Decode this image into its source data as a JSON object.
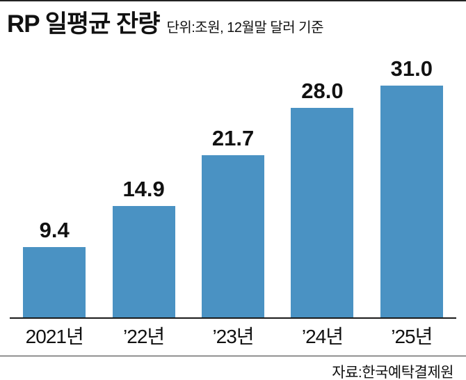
{
  "header": {
    "title": "RP 일평균 잔량",
    "subtitle": "단위:조원, 12월말 달러 기준"
  },
  "chart_data": {
    "type": "bar",
    "title": "RP 일평균 잔량",
    "unit": "조원",
    "categories": [
      "2021년",
      "’22년",
      "’23년",
      "’24년",
      "’25년"
    ],
    "values": [
      9.4,
      14.9,
      21.7,
      28.0,
      31.0
    ],
    "value_labels": [
      "9.4",
      "14.9",
      "21.7",
      "28.0",
      "31.0"
    ],
    "ylim": [
      0,
      31
    ],
    "grid": false,
    "legend": "none",
    "bar_color": "#4a92c3",
    "axis_color": "#1a1a1a"
  },
  "footer": {
    "source": "자료:한국예탁결제원"
  }
}
